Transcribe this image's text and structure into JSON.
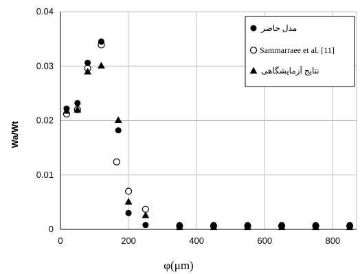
{
  "chart_data": {
    "type": "scatter",
    "xlabel": "φ(μm)",
    "ylabel": "Wa/Wt",
    "xlim": [
      0,
      870
    ],
    "ylim": [
      0,
      0.04
    ],
    "x_ticks": [
      "0",
      "200",
      "400",
      "600",
      "800"
    ],
    "y_ticks": [
      "0",
      "0.01",
      "0.02",
      "0.03",
      "0.04"
    ],
    "grid": true,
    "legend_position": "top-right",
    "series": [
      {
        "name": "مدل حاضر",
        "marker": "filled-circle",
        "color": "#000000",
        "points": [
          [
            18,
            0.0222
          ],
          [
            50,
            0.0232
          ],
          [
            80,
            0.0306
          ],
          [
            120,
            0.0345
          ],
          [
            170,
            0.0182
          ],
          [
            200,
            0.003
          ],
          [
            250,
            0.0008
          ],
          [
            350,
            0.0008
          ],
          [
            450,
            0.0008
          ],
          [
            550,
            0.0008
          ],
          [
            650,
            0.0008
          ],
          [
            750,
            0.0008
          ],
          [
            850,
            0.0008
          ]
        ]
      },
      {
        "name": "Sammarraee et al. [11]",
        "marker": "open-circle",
        "color": "#000000",
        "points": [
          [
            18,
            0.0212
          ],
          [
            50,
            0.022
          ],
          [
            80,
            0.0296
          ],
          [
            120,
            0.0339
          ],
          [
            165,
            0.0124
          ],
          [
            200,
            0.007
          ],
          [
            250,
            0.0037
          ],
          [
            350,
            0.0006
          ],
          [
            450,
            0.0006
          ],
          [
            550,
            0.0006
          ],
          [
            650,
            0.0006
          ],
          [
            750,
            0.0006
          ],
          [
            850,
            0.0006
          ]
        ]
      },
      {
        "name": "نتایج آزمایشگاهی",
        "marker": "filled-triangle",
        "color": "#000000",
        "points": [
          [
            18,
            0.0218
          ],
          [
            50,
            0.022
          ],
          [
            80,
            0.029
          ],
          [
            120,
            0.0301
          ],
          [
            170,
            0.0201
          ],
          [
            200,
            0.0051
          ],
          [
            250,
            0.0026
          ],
          [
            350,
            0.0004
          ],
          [
            450,
            0.0004
          ],
          [
            550,
            0.0004
          ],
          [
            650,
            0.0004
          ],
          [
            750,
            0.0004
          ],
          [
            850,
            0.0004
          ]
        ]
      }
    ]
  }
}
